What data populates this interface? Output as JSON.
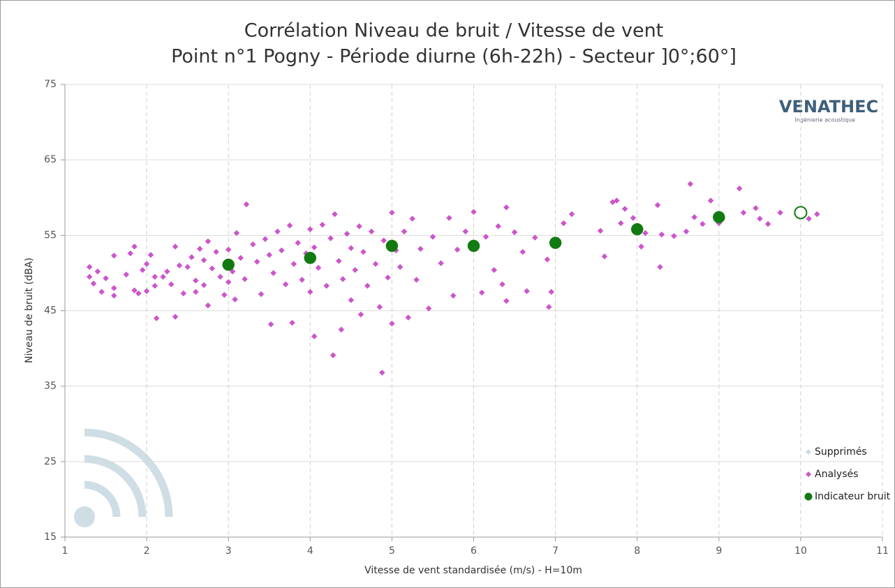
{
  "chart_data": {
    "type": "scatter",
    "title": "Corrélation Niveau de bruit / Vitesse de vent",
    "subtitle": "Point n°1 Pogny - Période diurne (6h-22h) - Secteur ]0°;60°]",
    "x_label": "Vitesse de vent standardisée (m/s) - H=10m",
    "y_label": "Niveau de bruit (dBA)",
    "logo": "VENATHEC",
    "logo_subtitle": "Ingénierie acoustique",
    "xlim": [
      1,
      11
    ],
    "xticks": [
      1,
      2,
      3,
      4,
      5,
      6,
      7,
      8,
      9,
      10,
      11
    ],
    "ylim": [
      15,
      75
    ],
    "yticks": [
      15,
      25,
      35,
      45,
      55,
      65,
      75
    ],
    "grid": true,
    "legend": "lower right",
    "series": [
      {
        "name": "Supprimés",
        "color": "#c8d8ee",
        "marker": "diamond",
        "x": [],
        "values": []
      },
      {
        "name": "Analysés",
        "color": "#cc55cc",
        "marker": "diamond",
        "x": [
          1.3,
          1.3,
          1.35,
          1.4,
          1.45,
          1.5,
          1.6,
          1.6,
          1.6,
          1.75,
          1.8,
          1.85,
          1.85,
          1.9,
          1.95,
          2.0,
          2.0,
          2.05,
          2.1,
          2.1,
          2.12,
          2.2,
          2.25,
          2.3,
          2.35,
          2.35,
          2.4,
          2.45,
          2.5,
          2.55,
          2.6,
          2.6,
          2.65,
          2.7,
          2.7,
          2.75,
          2.75,
          2.8,
          2.85,
          2.9,
          2.95,
          3.0,
          3.0,
          3.05,
          3.08,
          3.1,
          3.15,
          3.2,
          3.22,
          3.3,
          3.35,
          3.4,
          3.45,
          3.5,
          3.52,
          3.55,
          3.6,
          3.65,
          3.7,
          3.75,
          3.78,
          3.8,
          3.85,
          3.9,
          3.95,
          4.0,
          4.0,
          4.05,
          4.05,
          4.1,
          4.15,
          4.2,
          4.25,
          4.28,
          4.3,
          4.35,
          4.38,
          4.4,
          4.45,
          4.5,
          4.5,
          4.55,
          4.6,
          4.62,
          4.65,
          4.7,
          4.75,
          4.8,
          4.85,
          4.88,
          4.9,
          4.95,
          5.0,
          5.0,
          5.05,
          5.1,
          5.15,
          5.2,
          5.25,
          5.3,
          5.35,
          5.45,
          5.5,
          5.6,
          5.7,
          5.75,
          5.8,
          5.9,
          6.0,
          6.1,
          6.15,
          6.25,
          6.3,
          6.35,
          6.4,
          6.4,
          6.5,
          6.6,
          6.65,
          6.75,
          6.9,
          6.92,
          6.95,
          7.1,
          7.2,
          7.55,
          7.6,
          7.7,
          7.75,
          7.8,
          7.85,
          7.95,
          8.05,
          8.1,
          8.25,
          8.28,
          8.3,
          8.45,
          8.6,
          8.65,
          8.7,
          8.8,
          8.9,
          9.0,
          9.25,
          9.3,
          9.45,
          9.5,
          9.6,
          9.75,
          9.95,
          10.1,
          10.2
        ],
        "values": [
          50.8,
          49.5,
          48.6,
          50.2,
          47.5,
          49.3,
          52.3,
          48,
          47,
          49.8,
          52.6,
          53.5,
          47.7,
          47.3,
          50.4,
          51.2,
          47.6,
          52.4,
          49.5,
          48.3,
          44,
          49.5,
          50.2,
          48.5,
          53.5,
          44.2,
          51,
          47.3,
          50.8,
          52.1,
          49,
          47.5,
          53.2,
          51.7,
          48.4,
          54.2,
          45.7,
          50.6,
          52.8,
          49.5,
          47.1,
          53.1,
          48.8,
          50.2,
          46.5,
          55.3,
          52,
          49.2,
          59.1,
          53.8,
          51.5,
          47.2,
          54.5,
          52.4,
          43.2,
          50,
          55.5,
          53,
          48.5,
          56.3,
          43.4,
          51.2,
          54,
          49.1,
          52.6,
          55.8,
          47.5,
          41.6,
          53.4,
          50.7,
          56.4,
          48.3,
          54.6,
          39.1,
          57.8,
          51.6,
          42.5,
          49.2,
          55.2,
          53.3,
          46.4,
          50.4,
          56.2,
          44.5,
          52.8,
          48.3,
          55.5,
          51.2,
          45.5,
          36.8,
          54.3,
          49.4,
          58,
          43.3,
          53,
          50.8,
          55.5,
          44.1,
          57.2,
          49.1,
          53.2,
          45.3,
          54.8,
          51.3,
          57.3,
          47,
          53.1,
          55.5,
          58.1,
          47.4,
          54.8,
          50.4,
          56.2,
          48.5,
          58.7,
          46.3,
          55.4,
          52.8,
          47.6,
          54.7,
          51.8,
          45.5,
          47.5,
          56.6,
          57.8,
          55.6,
          52.2,
          59.4,
          59.6,
          56.6,
          58.5,
          57.3,
          53.5,
          55.3,
          59,
          50.8,
          55.1,
          54.9,
          55.5,
          61.8,
          57.4,
          56.5,
          59.6,
          56.6,
          61.2,
          58,
          58.6,
          57.2,
          56.5,
          58,
          57.8,
          57.2,
          57.8
        ]
      },
      {
        "name": "Indicateur bruit",
        "color": "#117a11",
        "marker": "circle",
        "x": [
          3,
          4,
          5,
          6,
          7,
          8,
          9,
          10
        ],
        "values": [
          51.1,
          52,
          53.6,
          53.6,
          54,
          55.8,
          57.4,
          58
        ],
        "open_points": [
          7
        ]
      }
    ]
  }
}
